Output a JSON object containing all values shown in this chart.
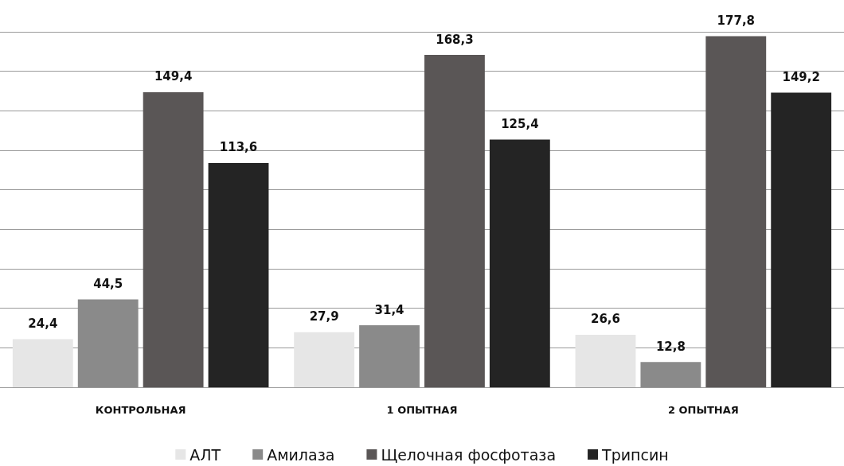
{
  "chart_data": {
    "type": "bar",
    "categories": [
      "КОНТРОЛЬНАЯ",
      "1 ОПЫТНАЯ",
      "2 ОПЫТНАЯ"
    ],
    "series": [
      {
        "name": "АЛТ",
        "color": "#e6e6e6",
        "values": [
          24.4,
          27.9,
          26.6
        ],
        "value_labels": [
          "24,4",
          "27,9",
          "26,6"
        ]
      },
      {
        "name": "Амилаза",
        "color": "#8a8a8a",
        "values": [
          44.5,
          31.4,
          12.8
        ],
        "value_labels": [
          "44,5",
          "31,4",
          "12,8"
        ]
      },
      {
        "name": "Щелочная фосфотаза",
        "color": "#5a5656",
        "values": [
          149.4,
          168.3,
          177.8
        ],
        "value_labels": [
          "149,4",
          "168,3",
          "177,8"
        ]
      },
      {
        "name": "Трипсин",
        "color": "#242424",
        "values": [
          113.6,
          125.4,
          149.2
        ],
        "value_labels": [
          "113,6",
          "125,4",
          "149,2"
        ]
      }
    ],
    "grid": "y",
    "legend": "bottom",
    "tick_labels": "x"
  }
}
